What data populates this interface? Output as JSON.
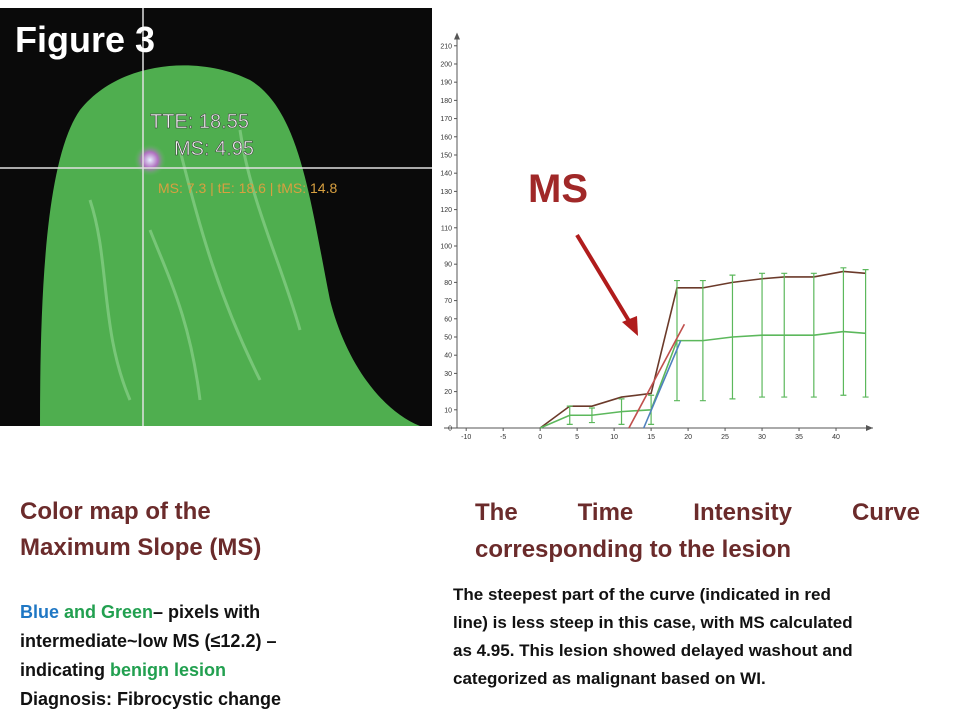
{
  "figure_label": "Figure 3",
  "image": {
    "annotations": [
      "TTE: 18.55",
      "MS: 4.95",
      "MS: 7.3 | tE: 18.6 | tMS: 14.8"
    ]
  },
  "chart_data": {
    "type": "line",
    "annotation": "MS",
    "xlim": [
      -13,
      45
    ],
    "ylim": [
      0,
      214
    ],
    "xticks": [
      -10,
      -5,
      0,
      5,
      10,
      15,
      20,
      25,
      30,
      35,
      40
    ],
    "yticks": [
      0,
      10,
      20,
      30,
      40,
      50,
      60,
      70,
      80,
      90,
      100,
      110,
      120,
      130,
      140,
      150,
      160,
      170,
      180,
      190,
      200,
      210
    ],
    "series": [
      {
        "color": "#6b3a2a",
        "x": [
          0,
          4,
          7,
          11,
          15,
          18.5,
          22,
          26,
          30,
          33,
          37,
          41,
          44
        ],
        "values": [
          0,
          12,
          12,
          17,
          19,
          77,
          77,
          80,
          82,
          83,
          83,
          86,
          85
        ]
      },
      {
        "color": "#5cb85c",
        "x": [
          0,
          4,
          7,
          11,
          15,
          18.5,
          22,
          26,
          30,
          33,
          37,
          41,
          44
        ],
        "values": [
          0,
          7,
          7,
          9,
          10,
          48,
          48,
          50,
          51,
          51,
          51,
          53,
          52
        ],
        "errors": [
          0,
          5,
          4,
          7,
          8,
          33,
          33,
          34,
          34,
          34,
          34,
          35,
          35
        ]
      },
      {
        "color": "#c0504d",
        "x": [
          12,
          19.5
        ],
        "values": [
          0,
          57
        ]
      },
      {
        "color": "#4f81bd",
        "x": [
          14,
          19
        ],
        "values": [
          0,
          48
        ]
      }
    ]
  },
  "left_caption": {
    "title": "Color map of the Maximum Slope (MS)",
    "segments": [
      "Blue",
      " and Green",
      "– pixels with",
      "intermediate~low MS  (≤12.2) –",
      "indicating ",
      "benign lesion",
      "Diagnosis: Fibrocystic change"
    ]
  },
  "right_caption": {
    "title": "The Time Intensity Curve corresponding to the lesion",
    "lines": [
      "The steepest part of the curve (indicated in red",
      "line) is less steep in this case, with MS calculated",
      "as 4.95.  This lesion showed delayed washout and",
      "categorized as malignant based on WI."
    ]
  }
}
